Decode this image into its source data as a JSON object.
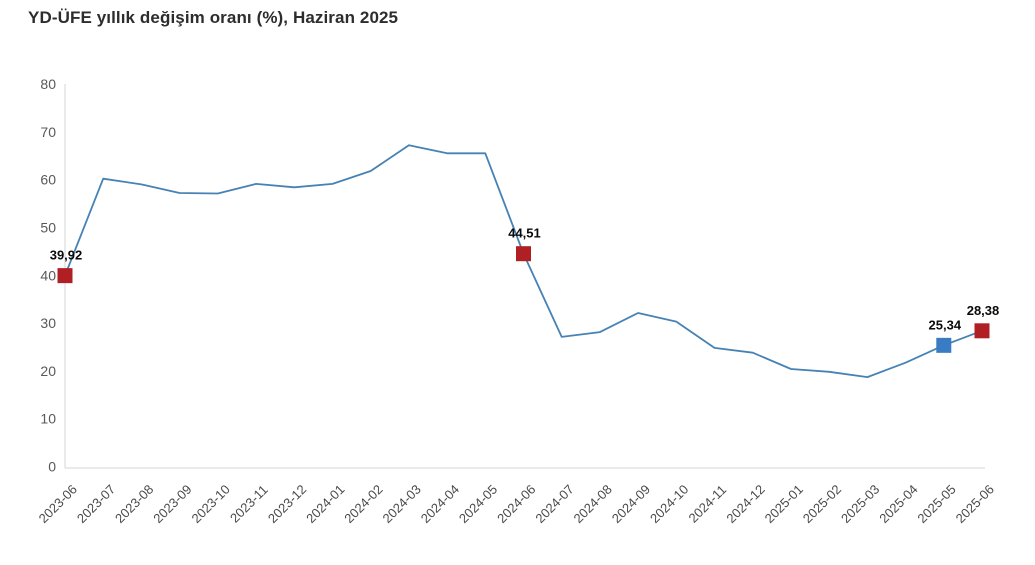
{
  "header": {
    "title": "YD-ÜFE yıllık değişim oranı (%), Haziran 2025"
  },
  "chart_data": {
    "type": "line",
    "title": "YD-ÜFE yıllık değişim oranı (%), Haziran 2025",
    "categories": [
      "2023-06",
      "2023-07",
      "2023-08",
      "2023-09",
      "2023-10",
      "2023-11",
      "2023-12",
      "2024-01",
      "2024-02",
      "2024-03",
      "2024-04",
      "2024-05",
      "2024-06",
      "2024-07",
      "2024-08",
      "2024-09",
      "2024-10",
      "2024-11",
      "2024-12",
      "2025-01",
      "2025-02",
      "2025-03",
      "2025-04",
      "2025-05",
      "2025-06"
    ],
    "values": [
      39.92,
      60.2,
      59.0,
      57.2,
      57.1,
      59.1,
      58.4,
      59.1,
      61.8,
      67.2,
      65.5,
      65.5,
      44.51,
      27.1,
      28.1,
      32.1,
      30.3,
      24.8,
      23.8,
      20.4,
      19.8,
      18.7,
      21.7,
      25.34,
      28.38
    ],
    "xlabel": "",
    "ylabel": "",
    "ylim": [
      0,
      80
    ],
    "ytick_step": 10,
    "yticks": [
      0,
      10,
      20,
      30,
      40,
      50,
      60,
      70,
      80
    ],
    "grid": false,
    "legend_position": "none",
    "line_color": "#4682b4",
    "axis_color": "#d6d6d6",
    "ytick_label_color": "#595959",
    "xtick_label_color": "#4a4a4a",
    "data_label_color": "#0a0a0a",
    "xtick_rotation_deg": -45,
    "labeled_points": [
      {
        "category": "2023-06",
        "index": 0,
        "label": "39,92",
        "value": 39.92,
        "marker_color": "#b01f24",
        "marker_shape": "square"
      },
      {
        "category": "2024-06",
        "index": 12,
        "label": "44,51",
        "value": 44.51,
        "marker_color": "#b01f24",
        "marker_shape": "square"
      },
      {
        "category": "2025-05",
        "index": 23,
        "label": "25,34",
        "value": 25.34,
        "marker_color": "#3a7cc3",
        "marker_shape": "square"
      },
      {
        "category": "2025-06",
        "index": 24,
        "label": "28,38",
        "value": 28.38,
        "marker_color": "#b01f24",
        "marker_shape": "square"
      }
    ]
  }
}
